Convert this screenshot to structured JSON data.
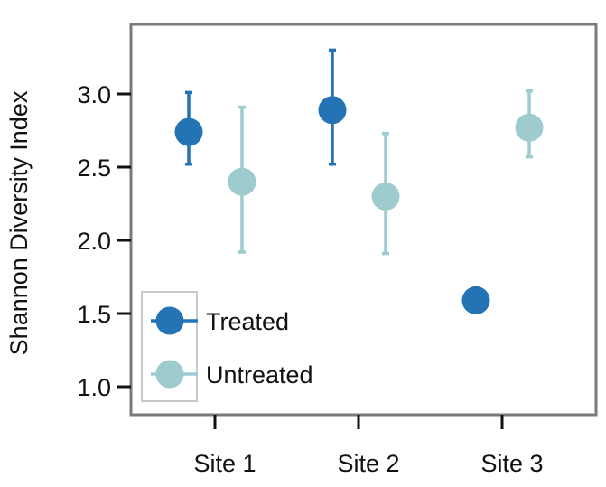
{
  "chart_data": {
    "type": "scatter",
    "title": "",
    "xlabel": "",
    "ylabel": "Shannon Diversity Index",
    "categories": [
      "Site 1",
      "Site 2",
      "Site 3"
    ],
    "ylim": [
      0.8,
      3.45
    ],
    "yticks": [
      1.0,
      1.5,
      2.0,
      2.5,
      3.0
    ],
    "ytick_labels": [
      "1.0",
      "1.5",
      "2.0",
      "2.5",
      "3.0"
    ],
    "grid": false,
    "legend_position": "bottom-left",
    "series": [
      {
        "name": "Treated",
        "color": "#2474b5",
        "values": [
          2.74,
          2.89,
          1.59
        ],
        "error_low": [
          2.52,
          2.52,
          null
        ],
        "error_high": [
          3.01,
          3.3,
          null
        ]
      },
      {
        "name": "Untreated",
        "color": "#9ecbcd",
        "values": [
          2.4,
          2.3,
          2.77
        ],
        "error_low": [
          1.92,
          1.91,
          2.57
        ],
        "error_high": [
          2.91,
          2.73,
          3.02
        ]
      }
    ]
  }
}
